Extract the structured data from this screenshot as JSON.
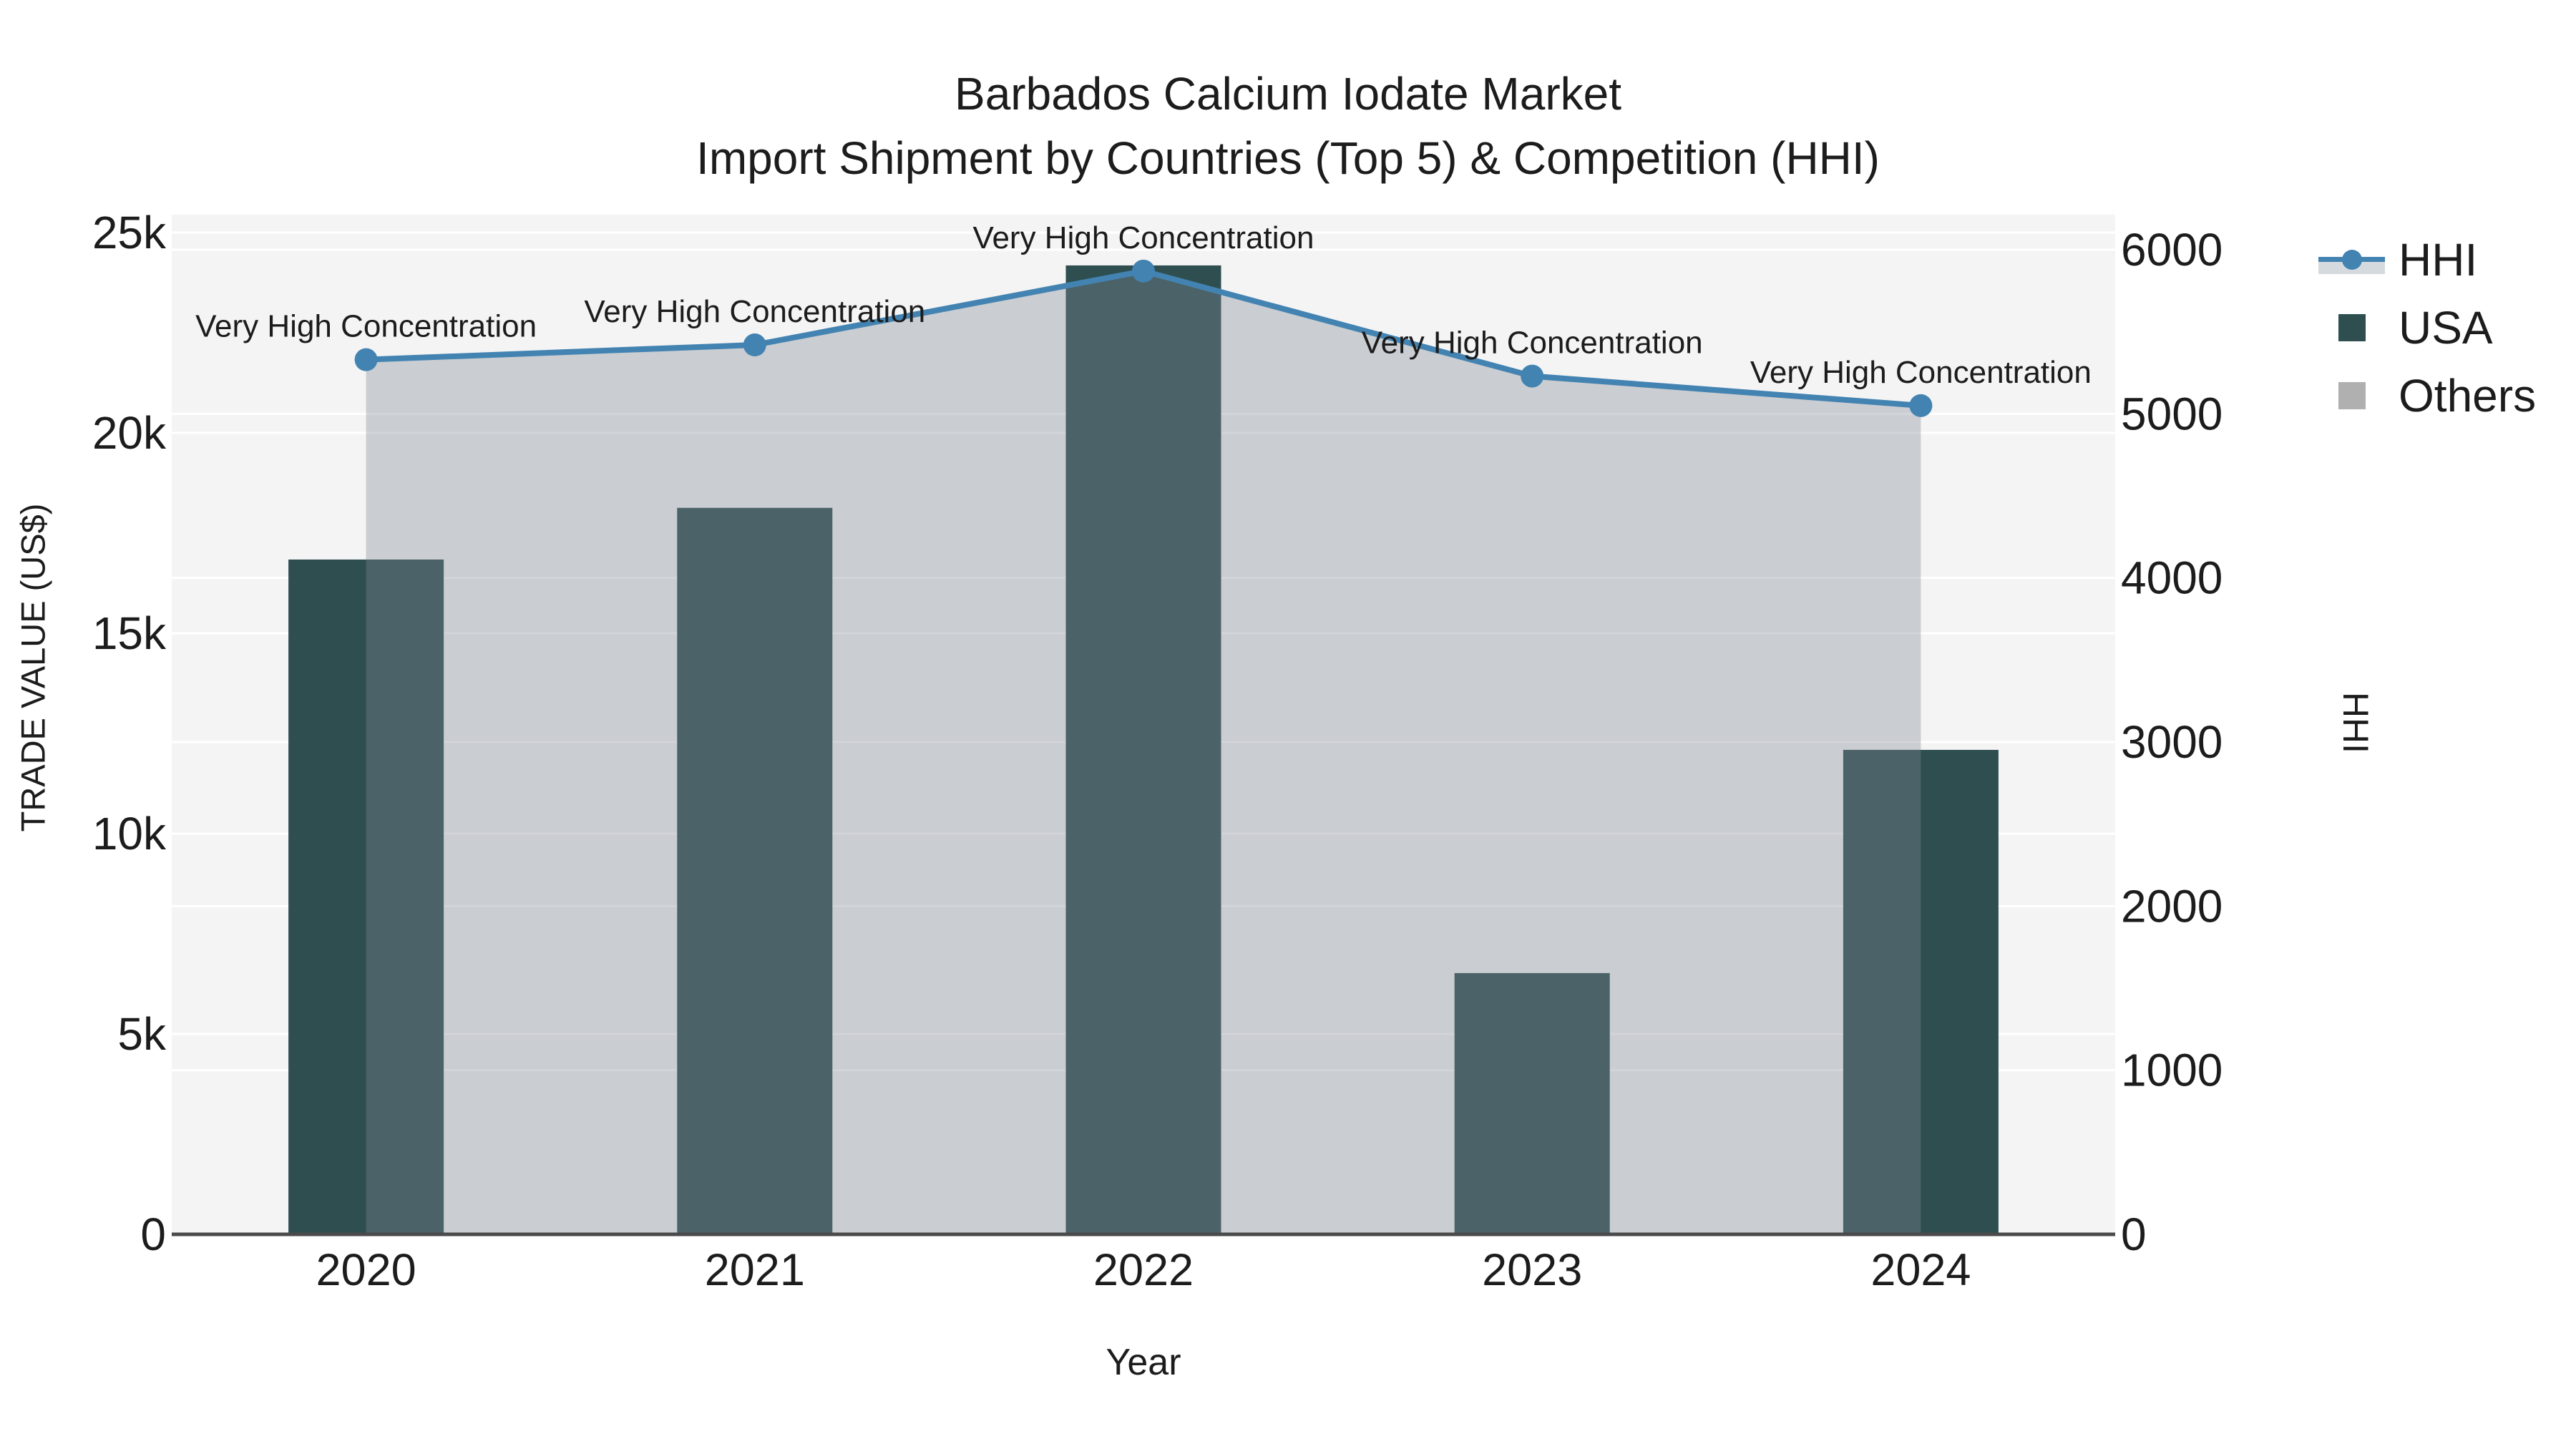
{
  "chart_data": {
    "type": "bar+line-area dual-axis",
    "title_line1": "Barbados Calcium Iodate Market",
    "title_line2": "Import Shipment by Countries (Top 5) & Competition (HHI)",
    "xlabel": "Year",
    "ylabel_left": "TRADE VALUE (US$)",
    "ylabel_right": "HHI",
    "categories": [
      "2020",
      "2021",
      "2022",
      "2023",
      "2024"
    ],
    "series": [
      {
        "name": "USA",
        "type": "bar",
        "axis": "left",
        "values": [
          16840,
          18130,
          24180,
          6520,
          12090
        ]
      },
      {
        "name": "HHI",
        "type": "line",
        "axis": "right",
        "values": [
          5330,
          5420,
          5870,
          5230,
          5050
        ]
      }
    ],
    "annotations": [
      "Very High Concentration",
      "Very High Concentration",
      "Very High Concentration",
      "Very High Concentration",
      "Very High Concentration"
    ],
    "left_ticks": [
      {
        "value": 0,
        "label": "0"
      },
      {
        "value": 5000,
        "label": "5k"
      },
      {
        "value": 10000,
        "label": "10k"
      },
      {
        "value": 15000,
        "label": "15k"
      },
      {
        "value": 20000,
        "label": "20k"
      },
      {
        "value": 25000,
        "label": "25k"
      }
    ],
    "right_ticks": [
      {
        "value": 0,
        "label": "0"
      },
      {
        "value": 1000,
        "label": "1000"
      },
      {
        "value": 2000,
        "label": "2000"
      },
      {
        "value": 3000,
        "label": "3000"
      },
      {
        "value": 4000,
        "label": "4000"
      },
      {
        "value": 5000,
        "label": "5000"
      },
      {
        "value": 6000,
        "label": "6000"
      }
    ],
    "ylim_left": [
      0,
      25450
    ],
    "ylim_right": [
      0,
      6225
    ],
    "grid": true,
    "legend_position": "right",
    "legend": [
      {
        "label": "HHI"
      },
      {
        "label": "USA"
      },
      {
        "label": "Others"
      }
    ],
    "colors": {
      "bar_usa": "#2e4e50",
      "hhi_line": "#4383b2",
      "hhi_area_fill": "rgba(128,136,146,0.36)",
      "legend_fill_swatch": "#d4dade",
      "others_swatch": "#b0b0b0",
      "plot_bg": "#f4f4f4",
      "gridline": "#ffffff",
      "axis_line": "#4a4a4a",
      "text": "#1c1c1c"
    }
  }
}
